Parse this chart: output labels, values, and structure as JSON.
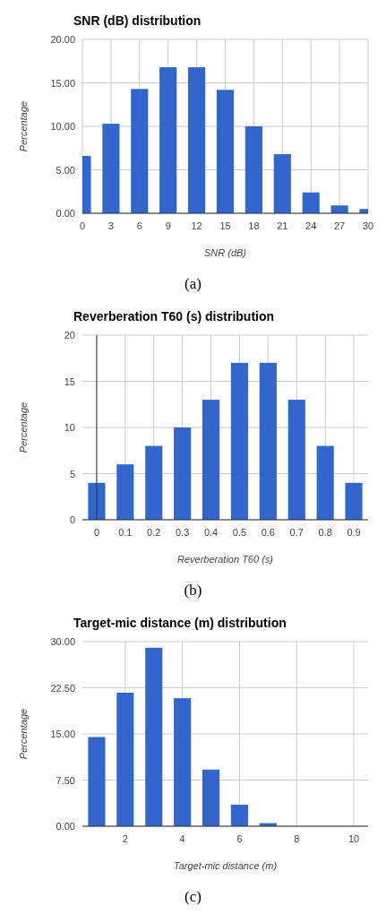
{
  "chart_data": [
    {
      "type": "bar",
      "title": "SNR (dB) distribution",
      "xlabel": "SNR (dB)",
      "ylabel": "Percentage",
      "x": [
        0,
        3,
        6,
        9,
        12,
        15,
        18,
        21,
        24,
        27,
        30
      ],
      "values": [
        6.6,
        10.3,
        14.3,
        16.8,
        16.8,
        14.2,
        10.0,
        6.8,
        2.4,
        0.9,
        0.5
      ],
      "color": "#3366cc",
      "xlim": [
        0,
        30
      ],
      "xticks": [
        0,
        3,
        6,
        9,
        12,
        15,
        18,
        21,
        24,
        27,
        30
      ],
      "ylim": [
        0,
        20
      ],
      "yticks": [
        {
          "value": 0,
          "label": "0.00"
        },
        {
          "value": 5,
          "label": "5.00"
        },
        {
          "value": 10,
          "label": "10.00"
        },
        {
          "value": 15,
          "label": "15.00"
        },
        {
          "value": 20,
          "label": "20.00"
        }
      ],
      "grid": true,
      "annotations": [
        "(a)"
      ]
    },
    {
      "type": "bar",
      "title": "Reverberation T60 (s) distribution",
      "xlabel": "Reverberation T60 (s)",
      "ylabel": "Percentage",
      "x": [
        0,
        0.1,
        0.2,
        0.3,
        0.4,
        0.5,
        0.6,
        0.7,
        0.8,
        0.9
      ],
      "values": [
        4,
        6,
        8,
        10,
        13,
        17,
        17,
        13,
        8,
        4
      ],
      "color": "#3366cc",
      "xlim": [
        -0.05,
        0.95
      ],
      "xticks": [
        0,
        0.1,
        0.2,
        0.3,
        0.4,
        0.5,
        0.6,
        0.7,
        0.8,
        0.9
      ],
      "ylim": [
        0,
        20
      ],
      "yticks": [
        0,
        5,
        10,
        15,
        20
      ],
      "grid": true,
      "annotations": [
        "(b)"
      ]
    },
    {
      "type": "bar",
      "title": "Target-mic distance (m) distribution",
      "xlabel": "Target-mic distance (m)",
      "ylabel": "Percentage",
      "x": [
        1,
        2,
        3,
        4,
        5,
        6,
        7
      ],
      "values": [
        14.5,
        21.7,
        29.0,
        20.8,
        9.2,
        3.5,
        0.5
      ],
      "color": "#3366cc",
      "xlim": [
        0.5,
        10.5
      ],
      "xticks": [
        2,
        4,
        6,
        8,
        10
      ],
      "ylim": [
        0,
        30
      ],
      "yticks": [
        {
          "value": 0,
          "label": "0.00"
        },
        {
          "value": 7.5,
          "label": "7.50"
        },
        {
          "value": 15,
          "label": "15.00"
        },
        {
          "value": 22.5,
          "label": "22.50"
        },
        {
          "value": 30,
          "label": "30.00"
        }
      ],
      "grid": true,
      "annotations": [
        "(c)"
      ]
    }
  ]
}
